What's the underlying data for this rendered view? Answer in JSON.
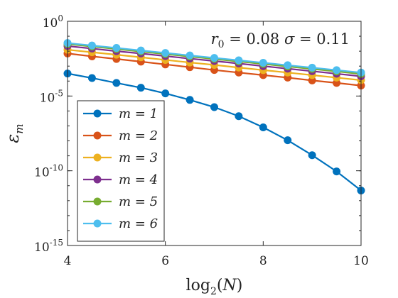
{
  "chart_data": {
    "type": "line",
    "title": "",
    "xlabel": "log2(N)",
    "ylabel": "εm",
    "x": [
      4,
      4.5,
      5,
      5.5,
      6,
      6.5,
      7,
      7.5,
      8,
      8.5,
      9,
      9.5,
      10
    ],
    "xlim": [
      4,
      10
    ],
    "ylim": [
      1e-15,
      1
    ],
    "yscale": "log",
    "xticks": [
      4,
      6,
      8,
      10
    ],
    "yticks": [
      1,
      1e-05,
      1e-10,
      1e-15
    ],
    "xtick_labels": [
      "4",
      "6",
      "8",
      "10"
    ],
    "ytick_labels": [
      {
        "base": "10",
        "exp": "0"
      },
      {
        "base": "10",
        "exp": "-5"
      },
      {
        "base": "10",
        "exp": "-10"
      },
      {
        "base": "10",
        "exp": "-15"
      }
    ],
    "grid": false,
    "legend_position": "bottom-left",
    "annotation": "r0 = 0.08  σ = 0.11",
    "series": [
      {
        "name": "m = 1",
        "color": "#0072BD",
        "values": [
          0.00032,
          0.00016,
          7.5e-05,
          3.6e-05,
          1.5e-05,
          5.5e-06,
          1.8e-06,
          4.5e-07,
          8e-08,
          1.1e-08,
          1.1e-09,
          9e-11,
          4.8e-12
        ]
      },
      {
        "name": "m = 2",
        "color": "#D95319",
        "values": [
          0.007,
          0.0045,
          0.003,
          0.002,
          0.0013,
          0.00085,
          0.00055,
          0.00037,
          0.00025,
          0.00017,
          0.00011,
          7.5e-05,
          5e-05
        ]
      },
      {
        "name": "m = 3",
        "color": "#EDB120",
        "values": [
          0.0125,
          0.0085,
          0.0058,
          0.0039,
          0.0026,
          0.00175,
          0.0012,
          0.0008,
          0.00054,
          0.00037,
          0.00025,
          0.00017,
          0.000115
        ]
      },
      {
        "name": "m = 4",
        "color": "#7E2F8E",
        "values": [
          0.022,
          0.015,
          0.01,
          0.007,
          0.0047,
          0.0032,
          0.0022,
          0.0015,
          0.001,
          0.00068,
          0.00046,
          0.00031,
          0.00021
        ]
      },
      {
        "name": "m = 5",
        "color": "#77AC30",
        "values": [
          0.03,
          0.0205,
          0.014,
          0.0095,
          0.0064,
          0.0044,
          0.003,
          0.00205,
          0.0014,
          0.00095,
          0.00065,
          0.00044,
          0.0003
        ]
      },
      {
        "name": "m = 6",
        "color": "#4DBEEE",
        "values": [
          0.035,
          0.024,
          0.0165,
          0.0112,
          0.0076,
          0.0052,
          0.00355,
          0.00245,
          0.00168,
          0.00115,
          0.00079,
          0.00054,
          0.00037
        ]
      }
    ]
  }
}
